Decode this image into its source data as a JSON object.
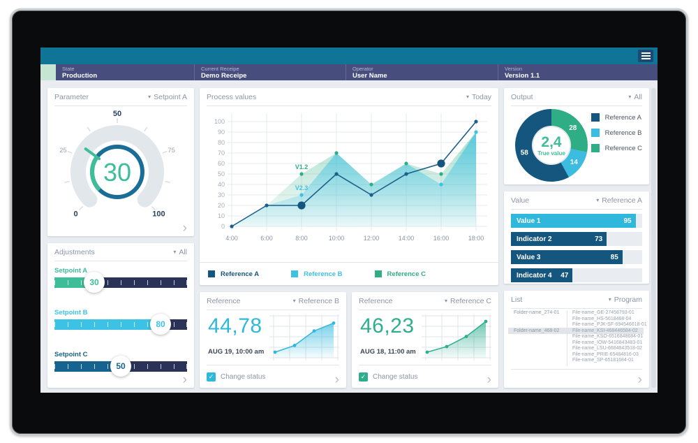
{
  "topbar": {
    "menu_label": "menu"
  },
  "statusbar": {
    "segments": [
      {
        "label": "State",
        "value": "Production"
      },
      {
        "label": "Current Receipe",
        "value": "Demo Receipe"
      },
      {
        "label": "Operator",
        "value": "User Name"
      },
      {
        "label": "Version",
        "value": "Version 1.1"
      }
    ],
    "ok_color": "#c6e5d3"
  },
  "colors": {
    "topbar": "#0f7495",
    "statusbar": "#474e7d",
    "background": "#e9edf2",
    "navy": "#15567f",
    "line_navy": "#1d5f8a",
    "cyan": "#3cc2e4",
    "green": "#2fae85",
    "accent_green": "#3dbd98"
  },
  "parameter": {
    "title": "Parameter",
    "dropdown": "Setpoint A"
  },
  "process": {
    "title": "Process values",
    "dropdown": "Today"
  },
  "output": {
    "title": "Output",
    "dropdown": "All"
  },
  "value": {
    "title": "Value",
    "dropdown": "Reference A"
  },
  "adjustments": {
    "title": "Adjustments",
    "dropdown": "All",
    "sliders": [
      {
        "label": "Setpoint A",
        "value": 30,
        "min": 0,
        "max": 100,
        "color": "#3dbd98"
      },
      {
        "label": "Setpoint B",
        "value": 80,
        "min": 0,
        "max": 100,
        "color": "#3cc2e4"
      },
      {
        "label": "Setpoint C",
        "value": 50,
        "min": 0,
        "max": 100,
        "color": "#16638f"
      }
    ]
  },
  "list": {
    "title": "List",
    "dropdown": "Program",
    "folders": [
      {
        "name": "Folder-name_274-01",
        "row": 0
      },
      {
        "name": "Folder-name_468-02",
        "row": 3
      }
    ],
    "files": [
      "File-name_GE-27458793-01",
      "File-name_HS-5618468-04",
      "File-name_PJK-SF-694546618-01",
      "File-name_KSI-468446584-02",
      "File-name_KSO-6516848684-01",
      "File-name_IOW-5416843483-01",
      "File-name_LSU-6684843518-02",
      "File-name_PRIE-65484816-03",
      "File-name_SP-65181684-01"
    ],
    "highlight_row": 3
  },
  "references": [
    {
      "title": "Reference",
      "dropdown": "Reference B",
      "value": "44,78",
      "timestamp": "AUG 19, 10:00 am",
      "checkbox_label": "Change status",
      "checked": true,
      "accent": "#2fb8dc"
    },
    {
      "title": "Reference",
      "dropdown": "Reference C",
      "value": "46,23",
      "timestamp": "AUG 18, 11:00 am",
      "checkbox_label": "Change status",
      "checked": true,
      "accent": "#2fae8f"
    }
  ],
  "chart_data": [
    {
      "id": "process_values",
      "type": "area",
      "title": "Process values",
      "range_label": "Today",
      "x": [
        "4:00",
        "6:00",
        "8:00",
        "10:00",
        "12:00",
        "14:00",
        "16:00",
        "18:00"
      ],
      "ylim": [
        0,
        100
      ],
      "ytick_step": 10,
      "grid": true,
      "legend_position": "bottom",
      "series": [
        {
          "name": "Reference C",
          "type": "area",
          "color": "#2fae85",
          "values": [
            0,
            20,
            50,
            70,
            40,
            60,
            50,
            90
          ],
          "dots": [
            2,
            3,
            4,
            5,
            6
          ],
          "point_label": {
            "index": 2,
            "text": "V1.2"
          }
        },
        {
          "name": "Reference B",
          "type": "area",
          "color": "#3cc2e4",
          "values": [
            0,
            20,
            30,
            70,
            40,
            60,
            40,
            90
          ],
          "dots": [
            2,
            6,
            7
          ],
          "point_label": {
            "index": 2,
            "text": "V2.3"
          }
        },
        {
          "name": "Reference A",
          "type": "line",
          "color": "#1d5f8a",
          "values": [
            0,
            20,
            20,
            50,
            30,
            50,
            60,
            100
          ],
          "dots": [
            0,
            1,
            2,
            3,
            4,
            5,
            6,
            7
          ],
          "emphasis_dots": [
            2,
            6
          ]
        }
      ],
      "legend": [
        {
          "label": "Reference A",
          "color": "#15567f"
        },
        {
          "label": "Reference B",
          "color": "#3cc2e4"
        },
        {
          "label": "Reference C",
          "color": "#2fae85"
        }
      ]
    },
    {
      "id": "output_donut",
      "type": "pie",
      "center_value": "2,4",
      "center_label": "True value",
      "center_color": "#3dbd98",
      "start": "top",
      "direction": "clockwise",
      "slices": [
        {
          "name": "Reference C",
          "value": 28,
          "color": "#2fae85"
        },
        {
          "name": "Reference B",
          "value": 14,
          "color": "#3bbce0"
        },
        {
          "name": "Reference A",
          "value": 58,
          "color": "#15567f"
        }
      ],
      "legend": [
        {
          "label": "Reference A",
          "color": "#15567f"
        },
        {
          "label": "Reference B",
          "color": "#3bbce0"
        },
        {
          "label": "Reference C",
          "color": "#2fae85"
        }
      ]
    },
    {
      "id": "value_bars",
      "type": "bar",
      "orientation": "horizontal",
      "xlim": [
        0,
        100
      ],
      "bars": [
        {
          "label": "Value 1",
          "value": 95,
          "color": "#2fb8dc"
        },
        {
          "label": "Indicator 2",
          "value": 73,
          "color": "#15567f"
        },
        {
          "label": "Value 3",
          "value": 85,
          "color": "#15567f"
        },
        {
          "label": "Indicator 4",
          "value": 47,
          "color": "#15567f"
        }
      ]
    },
    {
      "id": "parameter_gauge",
      "type": "gauge",
      "value": 30,
      "min": 0,
      "max": 100,
      "ticks": [
        0,
        25,
        50,
        75,
        100
      ],
      "accent": "#3dbd98",
      "ring": "#1a6d96"
    },
    {
      "id": "reference_mini_b",
      "type": "line",
      "color": "#2fb8dc",
      "x": [
        0,
        1,
        2,
        3
      ],
      "values": [
        10,
        22,
        48,
        62
      ],
      "ylim": [
        0,
        70
      ],
      "grid": true
    },
    {
      "id": "reference_mini_c",
      "type": "line",
      "color": "#2fae8f",
      "x": [
        0,
        1,
        2,
        3
      ],
      "values": [
        10,
        20,
        38,
        65
      ],
      "ylim": [
        0,
        70
      ],
      "grid": true
    }
  ]
}
